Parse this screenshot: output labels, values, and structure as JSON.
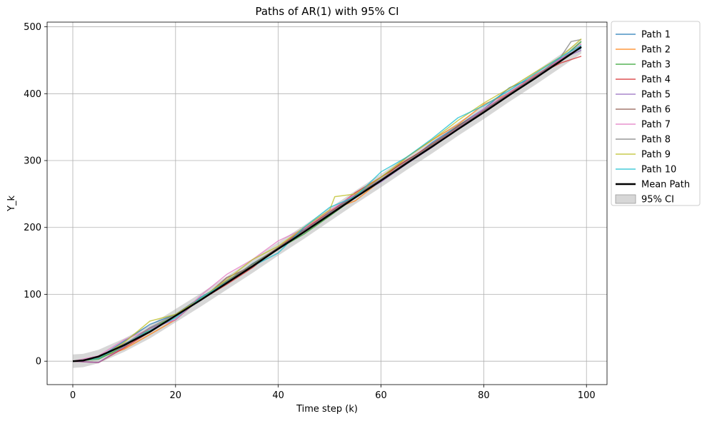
{
  "chart_data": {
    "type": "line",
    "title": "Paths of AR(1) with 95% CI",
    "xlabel": "Time step (k)",
    "ylabel": "Y_k",
    "xlim": [
      -5,
      104
    ],
    "ylim": [
      -35,
      507
    ],
    "xticks": [
      0,
      20,
      40,
      60,
      80,
      100
    ],
    "yticks": [
      0,
      100,
      200,
      300,
      400,
      500
    ],
    "grid": true,
    "legend_position": "outside-top-right",
    "mean_path": {
      "name": "Mean Path",
      "color": "#000000",
      "x": [
        0,
        2,
        5,
        10,
        15,
        20,
        25,
        30,
        35,
        40,
        45,
        50,
        55,
        60,
        65,
        70,
        75,
        80,
        85,
        90,
        95,
        99
      ],
      "y": [
        0,
        1,
        7,
        24,
        44,
        68,
        92,
        117,
        142,
        168,
        193,
        219,
        245,
        270,
        296,
        321,
        347,
        372,
        398,
        423,
        449,
        470
      ]
    },
    "ci_band": {
      "name": "95% CI",
      "color": "#b0b0b0",
      "x": [
        0,
        2,
        5,
        10,
        15,
        20,
        25,
        30,
        35,
        40,
        45,
        50,
        55,
        60,
        65,
        70,
        75,
        80,
        85,
        90,
        95,
        99
      ],
      "lower": [
        -10,
        -9,
        -3,
        14,
        34,
        58,
        82,
        107,
        132,
        158,
        183,
        209,
        235,
        260,
        286,
        311,
        337,
        362,
        388,
        413,
        439,
        460
      ],
      "upper": [
        10,
        11,
        17,
        34,
        54,
        78,
        102,
        127,
        152,
        178,
        203,
        229,
        255,
        280,
        306,
        331,
        357,
        382,
        408,
        433,
        459,
        480
      ]
    },
    "series": [
      {
        "name": "Path 1",
        "color": "#1f77b4",
        "x": [
          0,
          5,
          10,
          15,
          20,
          25,
          30,
          35,
          40,
          45,
          50,
          55,
          60,
          65,
          70,
          75,
          80,
          85,
          90,
          95,
          99
        ],
        "y": [
          0,
          5,
          30,
          55,
          70,
          96,
          118,
          146,
          169,
          197,
          223,
          248,
          272,
          297,
          327,
          352,
          377,
          409,
          425,
          453,
          468
        ]
      },
      {
        "name": "Path 2",
        "color": "#ff7f0e",
        "x": [
          0,
          5,
          10,
          15,
          20,
          25,
          30,
          35,
          40,
          45,
          50,
          55,
          60,
          65,
          70,
          75,
          80,
          85,
          90,
          95,
          99
        ],
        "y": [
          0,
          5,
          18,
          40,
          62,
          95,
          118,
          145,
          170,
          195,
          225,
          240,
          270,
          305,
          331,
          354,
          384,
          401,
          428,
          449,
          470
        ]
      },
      {
        "name": "Path 3",
        "color": "#2ca02c",
        "x": [
          0,
          5,
          10,
          15,
          20,
          25,
          30,
          35,
          40,
          45,
          50,
          55,
          60,
          65,
          70,
          75,
          80,
          85,
          90,
          95,
          99
        ],
        "y": [
          0,
          3,
          22,
          48,
          68,
          95,
          120,
          145,
          168,
          190,
          217,
          245,
          272,
          296,
          324,
          350,
          372,
          398,
          426,
          451,
          478
        ]
      },
      {
        "name": "Path 4",
        "color": "#d62728",
        "x": [
          0,
          5,
          10,
          15,
          20,
          25,
          30,
          35,
          40,
          45,
          50,
          55,
          60,
          65,
          70,
          75,
          80,
          85,
          90,
          95,
          99
        ],
        "y": [
          0,
          -2,
          20,
          44,
          68,
          92,
          115,
          140,
          170,
          198,
          222,
          252,
          275,
          300,
          325,
          350,
          374,
          400,
          427,
          446,
          456
        ]
      },
      {
        "name": "Path 5",
        "color": "#9467bd",
        "x": [
          0,
          5,
          10,
          15,
          20,
          25,
          30,
          35,
          40,
          45,
          50,
          55,
          60,
          65,
          70,
          75,
          80,
          85,
          90,
          95,
          99
        ],
        "y": [
          0,
          -2,
          22,
          50,
          62,
          95,
          118,
          143,
          168,
          195,
          222,
          246,
          268,
          295,
          320,
          349,
          375,
          399,
          424,
          452,
          465
        ]
      },
      {
        "name": "Path 6",
        "color": "#8c564b",
        "x": [
          0,
          5,
          10,
          15,
          20,
          25,
          30,
          35,
          40,
          45,
          50,
          55,
          60,
          65,
          70,
          75,
          80,
          85,
          90,
          95,
          99
        ],
        "y": [
          0,
          6,
          26,
          44,
          68,
          92,
          125,
          142,
          170,
          194,
          220,
          248,
          275,
          301,
          322,
          352,
          375,
          402,
          427,
          450,
          470
        ]
      },
      {
        "name": "Path 7",
        "color": "#e377c2",
        "x": [
          0,
          5,
          10,
          15,
          20,
          25,
          30,
          35,
          40,
          45,
          50,
          55,
          60,
          65,
          70,
          75,
          80,
          85,
          90,
          95,
          99
        ],
        "y": [
          0,
          8,
          32,
          48,
          62,
          99,
          130,
          152,
          180,
          198,
          225,
          250,
          272,
          298,
          322,
          349,
          377,
          402,
          427,
          452,
          474
        ]
      },
      {
        "name": "Path 8",
        "color": "#7f7f7f",
        "x": [
          0,
          5,
          10,
          15,
          20,
          25,
          30,
          35,
          40,
          45,
          50,
          55,
          60,
          65,
          70,
          75,
          80,
          85,
          90,
          95,
          97,
          99
        ],
        "y": [
          0,
          5,
          25,
          50,
          70,
          95,
          120,
          145,
          170,
          195,
          222,
          248,
          272,
          298,
          324,
          350,
          374,
          400,
          425,
          455,
          478,
          481
        ]
      },
      {
        "name": "Path 9",
        "color": "#bcbd22",
        "x": [
          0,
          5,
          10,
          15,
          20,
          25,
          30,
          35,
          40,
          45,
          50,
          51,
          55,
          60,
          65,
          70,
          75,
          80,
          85,
          90,
          95,
          99
        ],
        "y": [
          0,
          4,
          28,
          60,
          70,
          94,
          122,
          152,
          172,
          200,
          226,
          246,
          250,
          275,
          305,
          331,
          360,
          386,
          408,
          432,
          455,
          482
        ]
      },
      {
        "name": "Path 10",
        "color": "#17becf",
        "x": [
          0,
          5,
          10,
          15,
          20,
          25,
          30,
          35,
          40,
          45,
          50,
          55,
          60,
          65,
          70,
          75,
          80,
          85,
          90,
          95,
          99
        ],
        "y": [
          0,
          4,
          25,
          46,
          65,
          95,
          118,
          142,
          162,
          200,
          230,
          246,
          283,
          305,
          333,
          364,
          382,
          405,
          430,
          455,
          472
        ]
      }
    ]
  }
}
